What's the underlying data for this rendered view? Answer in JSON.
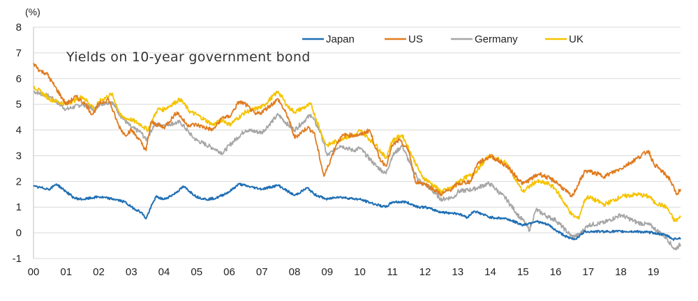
{
  "chart_data": {
    "type": "line",
    "title": "Yields on 10-year government bond",
    "ylabel": "(%)",
    "xlabel": "",
    "ylim": [
      -1,
      8
    ],
    "yticks": [
      8,
      7,
      6,
      5,
      4,
      3,
      2,
      1,
      0,
      -1
    ],
    "xlim": [
      2000,
      2019.83
    ],
    "xticks": [
      {
        "value": 2000,
        "label": "00"
      },
      {
        "value": 2001,
        "label": "01"
      },
      {
        "value": 2002,
        "label": "02"
      },
      {
        "value": 2003,
        "label": "03"
      },
      {
        "value": 2004,
        "label": "04"
      },
      {
        "value": 2005,
        "label": "05"
      },
      {
        "value": 2006,
        "label": "06"
      },
      {
        "value": 2007,
        "label": "07"
      },
      {
        "value": 2008,
        "label": "08"
      },
      {
        "value": 2009,
        "label": "09"
      },
      {
        "value": 2010,
        "label": "10"
      },
      {
        "value": 2011,
        "label": "11"
      },
      {
        "value": 2012,
        "label": "12"
      },
      {
        "value": 2013,
        "label": "13"
      },
      {
        "value": 2014,
        "label": "14"
      },
      {
        "value": 2015,
        "label": "15"
      },
      {
        "value": 2016,
        "label": "16"
      },
      {
        "value": 2017,
        "label": "17"
      },
      {
        "value": 2018,
        "label": "18"
      },
      {
        "value": 2019,
        "label": "19"
      }
    ],
    "grid": true,
    "legend_position": "top-right",
    "series": [
      {
        "name": "Japan",
        "color": "#1f6fb4",
        "points": [
          [
            2000,
            1.8
          ],
          [
            2000.5,
            1.7
          ],
          [
            2000.7,
            1.9
          ],
          [
            2001,
            1.6
          ],
          [
            2001.25,
            1.35
          ],
          [
            2001.5,
            1.3
          ],
          [
            2002,
            1.4
          ],
          [
            2002.5,
            1.3
          ],
          [
            2002.8,
            1.2
          ],
          [
            2003,
            1.0
          ],
          [
            2003.3,
            0.8
          ],
          [
            2003.45,
            0.55
          ],
          [
            2003.6,
            1.0
          ],
          [
            2003.75,
            1.4
          ],
          [
            2004,
            1.3
          ],
          [
            2004.3,
            1.5
          ],
          [
            2004.6,
            1.8
          ],
          [
            2005,
            1.4
          ],
          [
            2005.3,
            1.3
          ],
          [
            2005.6,
            1.35
          ],
          [
            2006,
            1.6
          ],
          [
            2006.3,
            1.9
          ],
          [
            2006.6,
            1.8
          ],
          [
            2007,
            1.7
          ],
          [
            2007.5,
            1.85
          ],
          [
            2008,
            1.45
          ],
          [
            2008.4,
            1.75
          ],
          [
            2008.6,
            1.5
          ],
          [
            2009,
            1.3
          ],
          [
            2009.3,
            1.4
          ],
          [
            2010,
            1.3
          ],
          [
            2010.5,
            1.1
          ],
          [
            2010.8,
            1.0
          ],
          [
            2011,
            1.2
          ],
          [
            2011.4,
            1.2
          ],
          [
            2011.8,
            1.0
          ],
          [
            2012,
            1.0
          ],
          [
            2012.5,
            0.8
          ],
          [
            2013,
            0.75
          ],
          [
            2013.3,
            0.6
          ],
          [
            2013.5,
            0.85
          ],
          [
            2014,
            0.6
          ],
          [
            2014.5,
            0.55
          ],
          [
            2015,
            0.3
          ],
          [
            2015.4,
            0.45
          ],
          [
            2015.8,
            0.3
          ],
          [
            2016,
            0.1
          ],
          [
            2016.4,
            -0.2
          ],
          [
            2016.6,
            -0.25
          ],
          [
            2016.9,
            0.05
          ],
          [
            2017,
            0.05
          ],
          [
            2017.5,
            0.05
          ],
          [
            2018,
            0.05
          ],
          [
            2018.5,
            0.05
          ],
          [
            2019,
            0.0
          ],
          [
            2019.4,
            -0.1
          ],
          [
            2019.6,
            -0.25
          ],
          [
            2019.83,
            -0.2
          ]
        ]
      },
      {
        "name": "US",
        "color": "#e07b1f",
        "points": [
          [
            2000,
            6.6
          ],
          [
            2000.2,
            6.3
          ],
          [
            2000.4,
            6.2
          ],
          [
            2000.6,
            5.8
          ],
          [
            2000.9,
            5.2
          ],
          [
            2001,
            5.0
          ],
          [
            2001.3,
            5.3
          ],
          [
            2001.6,
            5.0
          ],
          [
            2001.8,
            4.6
          ],
          [
            2002,
            5.0
          ],
          [
            2002.3,
            5.2
          ],
          [
            2002.6,
            4.2
          ],
          [
            2002.8,
            3.8
          ],
          [
            2003,
            4.0
          ],
          [
            2003.2,
            3.7
          ],
          [
            2003.45,
            3.2
          ],
          [
            2003.6,
            4.3
          ],
          [
            2004,
            4.1
          ],
          [
            2004.4,
            4.7
          ],
          [
            2004.7,
            4.2
          ],
          [
            2005,
            4.2
          ],
          [
            2005.5,
            4.0
          ],
          [
            2005.8,
            4.5
          ],
          [
            2006,
            4.5
          ],
          [
            2006.3,
            5.1
          ],
          [
            2006.5,
            5.0
          ],
          [
            2006.8,
            4.6
          ],
          [
            2007,
            4.7
          ],
          [
            2007.5,
            5.2
          ],
          [
            2007.8,
            4.5
          ],
          [
            2008,
            3.7
          ],
          [
            2008.4,
            4.1
          ],
          [
            2008.6,
            3.9
          ],
          [
            2008.9,
            2.2
          ],
          [
            2009,
            2.5
          ],
          [
            2009.3,
            3.5
          ],
          [
            2009.5,
            3.8
          ],
          [
            2010,
            3.8
          ],
          [
            2010.3,
            4.0
          ],
          [
            2010.6,
            2.9
          ],
          [
            2010.8,
            2.6
          ],
          [
            2011,
            3.4
          ],
          [
            2011.2,
            3.6
          ],
          [
            2011.5,
            3.2
          ],
          [
            2011.7,
            2.0
          ],
          [
            2012,
            1.9
          ],
          [
            2012.5,
            1.5
          ],
          [
            2012.8,
            1.7
          ],
          [
            2013,
            1.9
          ],
          [
            2013.4,
            2.0
          ],
          [
            2013.6,
            2.7
          ],
          [
            2013.9,
            2.9
          ],
          [
            2014,
            3.0
          ],
          [
            2014.5,
            2.6
          ],
          [
            2015,
            1.9
          ],
          [
            2015.5,
            2.3
          ],
          [
            2016,
            2.0
          ],
          [
            2016.5,
            1.4
          ],
          [
            2016.9,
            2.4
          ],
          [
            2017,
            2.4
          ],
          [
            2017.5,
            2.2
          ],
          [
            2018,
            2.5
          ],
          [
            2018.5,
            2.9
          ],
          [
            2018.85,
            3.2
          ],
          [
            2019,
            2.7
          ],
          [
            2019.5,
            2.1
          ],
          [
            2019.7,
            1.5
          ],
          [
            2019.83,
            1.7
          ]
        ]
      },
      {
        "name": "Germany",
        "color": "#a6a6a6",
        "points": [
          [
            2000,
            5.5
          ],
          [
            2000.5,
            5.3
          ],
          [
            2001,
            4.8
          ],
          [
            2001.5,
            5.0
          ],
          [
            2001.9,
            4.8
          ],
          [
            2002,
            5.0
          ],
          [
            2002.4,
            5.1
          ],
          [
            2002.7,
            4.5
          ],
          [
            2003,
            4.1
          ],
          [
            2003.3,
            3.9
          ],
          [
            2003.45,
            3.6
          ],
          [
            2003.7,
            4.2
          ],
          [
            2004,
            4.2
          ],
          [
            2004.5,
            4.3
          ],
          [
            2004.9,
            3.7
          ],
          [
            2005,
            3.6
          ],
          [
            2005.5,
            3.3
          ],
          [
            2005.8,
            3.1
          ],
          [
            2006,
            3.4
          ],
          [
            2006.5,
            4.0
          ],
          [
            2007,
            3.9
          ],
          [
            2007.5,
            4.6
          ],
          [
            2007.8,
            4.2
          ],
          [
            2008,
            4.0
          ],
          [
            2008.5,
            4.6
          ],
          [
            2008.8,
            3.9
          ],
          [
            2009,
            3.0
          ],
          [
            2009.4,
            3.4
          ],
          [
            2009.8,
            3.2
          ],
          [
            2010,
            3.3
          ],
          [
            2010.5,
            2.6
          ],
          [
            2010.8,
            2.3
          ],
          [
            2011,
            3.0
          ],
          [
            2011.3,
            3.4
          ],
          [
            2011.6,
            2.5
          ],
          [
            2011.9,
            1.9
          ],
          [
            2012,
            1.9
          ],
          [
            2012.5,
            1.3
          ],
          [
            2012.9,
            1.4
          ],
          [
            2013,
            1.6
          ],
          [
            2013.5,
            1.7
          ],
          [
            2013.9,
            1.9
          ],
          [
            2014,
            1.9
          ],
          [
            2014.5,
            1.3
          ],
          [
            2014.9,
            0.6
          ],
          [
            2015,
            0.5
          ],
          [
            2015.2,
            0.1
          ],
          [
            2015.4,
            0.9
          ],
          [
            2015.8,
            0.6
          ],
          [
            2016,
            0.5
          ],
          [
            2016.5,
            -0.15
          ],
          [
            2016.7,
            -0.1
          ],
          [
            2017,
            0.3
          ],
          [
            2017.5,
            0.4
          ],
          [
            2018,
            0.7
          ],
          [
            2018.5,
            0.4
          ],
          [
            2018.9,
            0.3
          ],
          [
            2019,
            0.2
          ],
          [
            2019.4,
            -0.2
          ],
          [
            2019.65,
            -0.65
          ],
          [
            2019.83,
            -0.45
          ]
        ]
      },
      {
        "name": "UK",
        "color": "#f5c300",
        "points": [
          [
            2000,
            5.7
          ],
          [
            2000.5,
            5.2
          ],
          [
            2001,
            5.0
          ],
          [
            2001.5,
            5.3
          ],
          [
            2001.9,
            4.8
          ],
          [
            2002,
            5.1
          ],
          [
            2002.4,
            5.4
          ],
          [
            2002.7,
            4.5
          ],
          [
            2003,
            4.4
          ],
          [
            2003.3,
            4.2
          ],
          [
            2003.5,
            4.0
          ],
          [
            2003.8,
            4.8
          ],
          [
            2004,
            4.8
          ],
          [
            2004.5,
            5.2
          ],
          [
            2004.8,
            4.7
          ],
          [
            2005,
            4.6
          ],
          [
            2005.5,
            4.2
          ],
          [
            2005.8,
            4.4
          ],
          [
            2006,
            4.2
          ],
          [
            2006.5,
            4.7
          ],
          [
            2007,
            4.9
          ],
          [
            2007.5,
            5.5
          ],
          [
            2007.8,
            4.9
          ],
          [
            2008,
            4.7
          ],
          [
            2008.5,
            5.0
          ],
          [
            2008.9,
            3.6
          ],
          [
            2009,
            3.4
          ],
          [
            2009.5,
            3.7
          ],
          [
            2009.9,
            3.8
          ],
          [
            2010,
            4.0
          ],
          [
            2010.5,
            3.4
          ],
          [
            2010.8,
            2.9
          ],
          [
            2011,
            3.6
          ],
          [
            2011.3,
            3.8
          ],
          [
            2011.6,
            3.0
          ],
          [
            2011.9,
            2.2
          ],
          [
            2012,
            2.1
          ],
          [
            2012.5,
            1.6
          ],
          [
            2012.9,
            1.8
          ],
          [
            2013,
            2.0
          ],
          [
            2013.5,
            2.3
          ],
          [
            2013.9,
            2.9
          ],
          [
            2014,
            3.0
          ],
          [
            2014.5,
            2.7
          ],
          [
            2014.9,
            1.8
          ],
          [
            2015,
            1.6
          ],
          [
            2015.4,
            2.0
          ],
          [
            2015.8,
            1.9
          ],
          [
            2016,
            1.7
          ],
          [
            2016.5,
            0.7
          ],
          [
            2016.7,
            0.55
          ],
          [
            2016.9,
            1.3
          ],
          [
            2017,
            1.4
          ],
          [
            2017.5,
            1.1
          ],
          [
            2018,
            1.4
          ],
          [
            2018.5,
            1.5
          ],
          [
            2018.9,
            1.4
          ],
          [
            2019,
            1.2
          ],
          [
            2019.4,
            1.0
          ],
          [
            2019.65,
            0.45
          ],
          [
            2019.83,
            0.6
          ]
        ]
      }
    ]
  }
}
